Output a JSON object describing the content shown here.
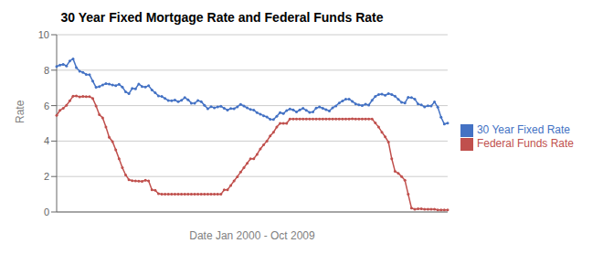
{
  "chart_data": {
    "type": "line",
    "title": "30 Year Fixed Mortgage Rate and Federal Funds Rate",
    "xlabel": "Date Jan 2000 - Oct 2009",
    "ylabel": "Rate",
    "ylim": [
      0,
      10
    ],
    "yticks": [
      0,
      2,
      4,
      6,
      8,
      10
    ],
    "grid": true,
    "legend": "right",
    "tick_labels": "y",
    "series": [
      {
        "name": "30 Year Fixed Rate",
        "color": "#4472C4",
        "marker": "o",
        "line_style": "solid",
        "values": [
          8.21,
          8.29,
          8.33,
          8.24,
          8.52,
          8.64,
          8.15,
          7.94,
          7.88,
          7.76,
          7.75,
          7.38,
          7.03,
          7.07,
          7.17,
          7.24,
          7.22,
          7.16,
          7.13,
          7.2,
          7.05,
          6.78,
          6.68,
          6.97,
          6.95,
          7.22,
          7.08,
          7.05,
          7.12,
          6.88,
          6.73,
          6.54,
          6.52,
          6.4,
          6.29,
          6.27,
          6.32,
          6.22,
          6.3,
          6.45,
          6.33,
          6.14,
          6.13,
          6.29,
          6.23,
          6.02,
          5.82,
          5.94,
          5.88,
          5.93,
          5.97,
          5.85,
          5.75,
          5.84,
          5.83,
          5.93,
          6.07,
          5.98,
          5.87,
          5.78,
          5.75,
          5.6,
          5.52,
          5.43,
          5.36,
          5.23,
          5.22,
          5.4,
          5.61,
          5.55,
          5.72,
          5.81,
          5.76,
          5.64,
          5.76,
          5.85,
          5.73,
          5.62,
          5.65,
          5.86,
          5.93,
          5.85,
          5.77,
          5.7,
          5.88,
          5.98,
          6.15,
          6.26,
          6.36,
          6.37,
          6.24,
          6.1,
          6.04,
          6.0,
          6.08,
          6.03,
          6.3,
          6.52,
          6.63,
          6.65,
          6.58,
          6.68,
          6.62,
          6.53,
          6.35,
          6.18,
          6.15,
          6.47,
          6.45,
          6.37,
          6.09,
          6.04,
          5.93,
          5.99,
          5.98,
          6.21,
          5.91,
          5.35,
          4.96,
          5.01
        ]
      },
      {
        "name": "Federal Funds Rate",
        "color": "#C0504D",
        "marker": "o",
        "line_style": "solid",
        "values": [
          5.45,
          5.73,
          5.85,
          6.02,
          6.27,
          6.53,
          6.54,
          6.5,
          6.52,
          6.51,
          6.51,
          6.4,
          5.98,
          5.49,
          5.31,
          4.8,
          4.21,
          3.97,
          3.5,
          3.0,
          2.5,
          2.09,
          1.82,
          1.77,
          1.75,
          1.74,
          1.73,
          1.79,
          1.75,
          1.25,
          1.22,
          1.03,
          1.01,
          1.0,
          1.0,
          1.0,
          1.0,
          1.0,
          1.0,
          1.0,
          1.0,
          1.0,
          1.01,
          1.0,
          1.0,
          1.01,
          1.0,
          1.0,
          1.0,
          1.0,
          1.0,
          1.25,
          1.25,
          1.5,
          1.75,
          1.99,
          2.25,
          2.5,
          2.75,
          3.0,
          3.0,
          3.25,
          3.56,
          3.79,
          4.0,
          4.29,
          4.5,
          4.79,
          5.0,
          5.0,
          5.0,
          5.24,
          5.25,
          5.25,
          5.25,
          5.25,
          5.25,
          5.25,
          5.25,
          5.25,
          5.25,
          5.25,
          5.25,
          5.25,
          5.25,
          5.25,
          5.25,
          5.25,
          5.25,
          5.25,
          5.26,
          5.25,
          5.25,
          5.25,
          5.25,
          5.25,
          5.25,
          5.02,
          4.79,
          4.5,
          4.24,
          3.94,
          3.0,
          2.29,
          2.18,
          2.0,
          1.79,
          1.0,
          0.22,
          0.16,
          0.18,
          0.18,
          0.15,
          0.16,
          0.15,
          0.15,
          0.12,
          0.12,
          0.12,
          0.12
        ]
      }
    ]
  }
}
